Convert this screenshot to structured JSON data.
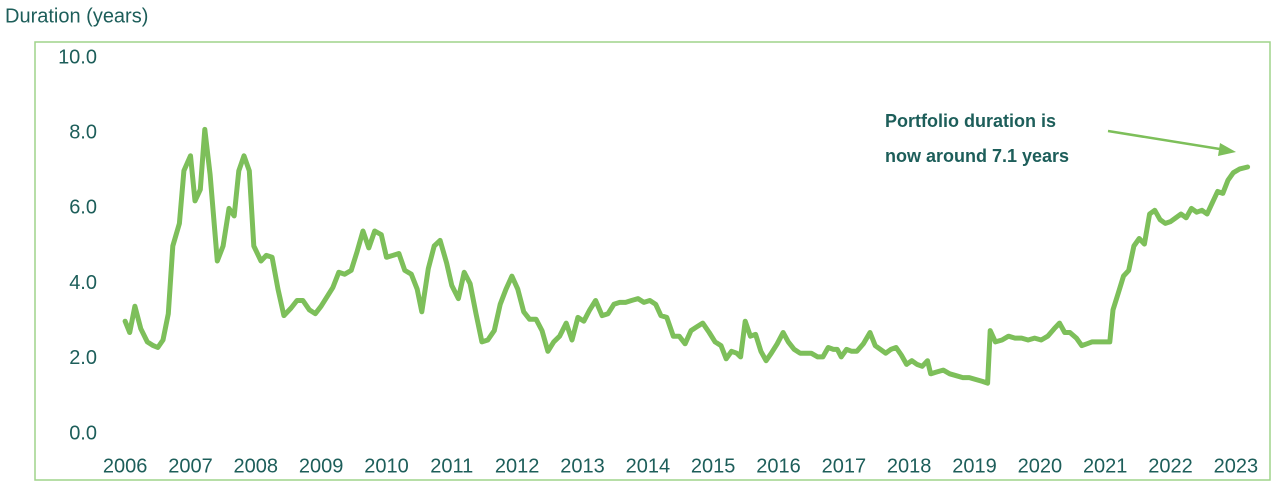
{
  "chart_data": {
    "type": "line",
    "y_axis_label": "Duration (years)",
    "annotation": [
      "Portfolio duration is",
      "now around 7.1 years"
    ],
    "series": [
      {
        "color": "#7dbf5a",
        "x": [
          2006.0,
          2006.07,
          2006.15,
          2006.24,
          2006.34,
          2006.43,
          2006.5,
          2006.58,
          2006.66,
          2006.73,
          2006.83,
          2006.9,
          2007.0,
          2007.07,
          2007.15,
          2007.22,
          2007.3,
          2007.41,
          2007.5,
          2007.59,
          2007.67,
          2007.74,
          2007.82,
          2007.9,
          2007.97,
          2008.08,
          2008.16,
          2008.25,
          2008.34,
          2008.43,
          2008.54,
          2008.63,
          2008.72,
          2008.82,
          2008.91,
          2009.0,
          2009.09,
          2009.18,
          2009.27,
          2009.36,
          2009.46,
          2009.55,
          2009.64,
          2009.73,
          2009.82,
          2009.92,
          2010.0,
          2010.1,
          2010.19,
          2010.28,
          2010.38,
          2010.47,
          2010.54,
          2010.64,
          2010.73,
          2010.82,
          2010.92,
          2011.0,
          2011.1,
          2011.19,
          2011.28,
          2011.37,
          2011.46,
          2011.55,
          2011.65,
          2011.74,
          2011.83,
          2011.92,
          2012.01,
          2012.1,
          2012.19,
          2012.29,
          2012.38,
          2012.47,
          2012.56,
          2012.65,
          2012.75,
          2012.84,
          2012.93,
          2013.02,
          2013.11,
          2013.2,
          2013.3,
          2013.39,
          2013.48,
          2013.57,
          2013.66,
          2013.75,
          2013.85,
          2013.94,
          2014.03,
          2014.12,
          2014.2,
          2014.29,
          2014.39,
          2014.48,
          2014.57,
          2014.66,
          2014.75,
          2014.84,
          2014.94,
          2015.03,
          2015.12,
          2015.2,
          2015.28,
          2015.36,
          2015.42,
          2015.49,
          2015.57,
          2015.65,
          2015.73,
          2015.81,
          2015.89,
          2015.98,
          2016.07,
          2016.15,
          2016.24,
          2016.33,
          2016.42,
          2016.5,
          2016.6,
          2016.68,
          2016.76,
          2016.84,
          2016.9,
          2016.96,
          2017.04,
          2017.12,
          2017.2,
          2017.3,
          2017.4,
          2017.48,
          2017.56,
          2017.64,
          2017.72,
          2017.8,
          2017.88,
          2017.96,
          2018.04,
          2018.12,
          2018.2,
          2018.28,
          2018.33,
          2018.42,
          2018.52,
          2018.62,
          2018.72,
          2018.82,
          2018.92,
          2019.02,
          2019.12,
          2019.2,
          2019.24,
          2019.32,
          2019.42,
          2019.52,
          2019.62,
          2019.72,
          2019.82,
          2019.92,
          2020.02,
          2020.12,
          2020.22,
          2020.3,
          2020.38,
          2020.46,
          2020.56,
          2020.64,
          2020.72,
          2020.8,
          2020.9,
          2021.0,
          2021.07,
          2021.12,
          2021.2,
          2021.28,
          2021.36,
          2021.44,
          2021.52,
          2021.6,
          2021.68,
          2021.76,
          2021.84,
          2021.92,
          2022.0,
          2022.08,
          2022.16,
          2022.24,
          2022.32,
          2022.4,
          2022.48,
          2022.56,
          2022.64,
          2022.72,
          2022.8,
          2022.88,
          2022.96,
          2023.06,
          2023.18
        ],
        "values": [
          3.0,
          2.7,
          3.4,
          2.8,
          2.45,
          2.35,
          2.3,
          2.5,
          3.2,
          5.0,
          5.6,
          7.0,
          7.4,
          6.2,
          6.5,
          8.1,
          6.9,
          4.6,
          5.0,
          6.0,
          5.8,
          7.0,
          7.4,
          7.0,
          5.0,
          4.6,
          4.75,
          4.7,
          3.85,
          3.15,
          3.35,
          3.55,
          3.55,
          3.3,
          3.2,
          3.4,
          3.65,
          3.9,
          4.3,
          4.25,
          4.35,
          4.85,
          5.4,
          4.95,
          5.4,
          5.3,
          4.7,
          4.75,
          4.8,
          4.35,
          4.25,
          3.85,
          3.25,
          4.4,
          5.0,
          5.15,
          4.55,
          3.95,
          3.6,
          4.3,
          4.0,
          3.2,
          2.45,
          2.5,
          2.75,
          3.45,
          3.85,
          4.2,
          3.85,
          3.25,
          3.05,
          3.05,
          2.75,
          2.2,
          2.45,
          2.6,
          2.95,
          2.5,
          3.1,
          3.0,
          3.3,
          3.55,
          3.15,
          3.2,
          3.45,
          3.5,
          3.5,
          3.55,
          3.6,
          3.5,
          3.55,
          3.45,
          3.15,
          3.1,
          2.6,
          2.6,
          2.4,
          2.75,
          2.85,
          2.95,
          2.7,
          2.45,
          2.35,
          2.0,
          2.2,
          2.15,
          2.05,
          3.0,
          2.6,
          2.65,
          2.2,
          1.95,
          2.15,
          2.4,
          2.7,
          2.45,
          2.25,
          2.15,
          2.15,
          2.15,
          2.05,
          2.05,
          2.3,
          2.25,
          2.25,
          2.05,
          2.25,
          2.2,
          2.2,
          2.4,
          2.7,
          2.35,
          2.25,
          2.15,
          2.25,
          2.3,
          2.1,
          1.85,
          1.95,
          1.85,
          1.8,
          1.95,
          1.6,
          1.65,
          1.7,
          1.6,
          1.55,
          1.5,
          1.5,
          1.45,
          1.4,
          1.35,
          2.75,
          2.45,
          2.5,
          2.6,
          2.55,
          2.55,
          2.5,
          2.55,
          2.5,
          2.6,
          2.8,
          2.95,
          2.7,
          2.7,
          2.55,
          2.35,
          2.4,
          2.45,
          2.45,
          2.45,
          2.45,
          3.3,
          3.75,
          4.2,
          4.35,
          5.0,
          5.2,
          5.05,
          5.85,
          5.95,
          5.7,
          5.6,
          5.65,
          5.75,
          5.85,
          5.75,
          6.0,
          5.9,
          5.95,
          5.85,
          6.15,
          6.45,
          6.4,
          6.75,
          6.95,
          7.05,
          7.1
        ]
      }
    ],
    "xlim": [
      2005.6,
      2023.4
    ],
    "xticks": [
      2006,
      2007,
      2008,
      2009,
      2010,
      2011,
      2012,
      2013,
      2014,
      2015,
      2016,
      2017,
      2018,
      2019,
      2020,
      2021,
      2022,
      2023
    ],
    "ylim": [
      0,
      10
    ],
    "yticks": [
      {
        "value": 0,
        "label": "0.0"
      },
      {
        "value": 2,
        "label": "2.0"
      },
      {
        "value": 4,
        "label": "4.0"
      },
      {
        "value": 6,
        "label": "6.0"
      },
      {
        "value": 8,
        "label": "8.0"
      },
      {
        "value": 10,
        "label": "10.0"
      }
    ],
    "grid": false
  }
}
